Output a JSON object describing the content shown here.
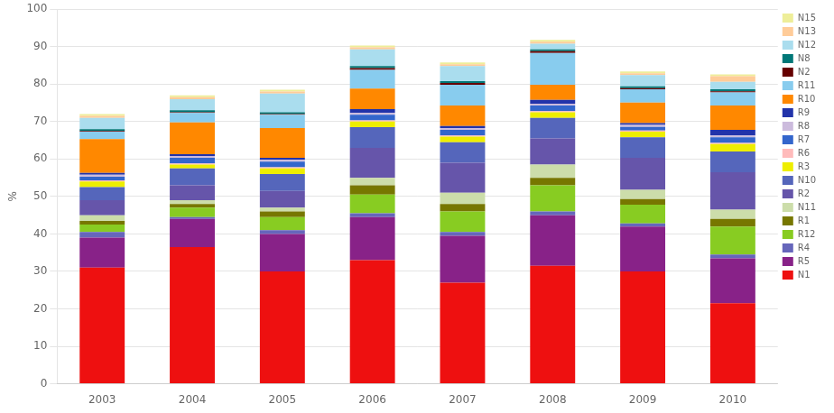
{
  "chart_data": {
    "type": "bar",
    "stacked": true,
    "ylabel": "%",
    "categories": [
      "2003",
      "2004",
      "2005",
      "2006",
      "2007",
      "2008",
      "2009",
      "2010"
    ],
    "series": [
      {
        "name": "N1",
        "color": "#ee1010",
        "values": [
          31.0,
          36.5,
          30.0,
          33.0,
          27.0,
          31.5,
          30.0,
          21.5
        ]
      },
      {
        "name": "R5",
        "color": "#882288",
        "values": [
          8.0,
          7.5,
          10.0,
          11.5,
          12.5,
          13.5,
          12.0,
          12.0
        ]
      },
      {
        "name": "R4",
        "color": "#6666bb",
        "values": [
          1.5,
          0.5,
          1.0,
          1.0,
          1.0,
          1.0,
          0.8,
          1.0
        ]
      },
      {
        "name": "R12",
        "color": "#88cc22",
        "values": [
          2.0,
          2.5,
          3.5,
          5.0,
          5.5,
          7.0,
          5.0,
          7.5
        ]
      },
      {
        "name": "R1",
        "color": "#777700",
        "values": [
          1.0,
          1.0,
          1.5,
          2.5,
          2.0,
          2.0,
          1.5,
          2.0
        ]
      },
      {
        "name": "N11",
        "color": "#ccddaa",
        "values": [
          1.5,
          1.0,
          1.0,
          2.0,
          3.0,
          3.5,
          2.5,
          2.5
        ]
      },
      {
        "name": "R2",
        "color": "#6655aa",
        "values": [
          4.0,
          4.0,
          4.5,
          8.0,
          8.0,
          7.0,
          8.5,
          10.0
        ]
      },
      {
        "name": "N10",
        "color": "#5566bb",
        "values": [
          3.5,
          4.5,
          4.5,
          5.5,
          5.5,
          5.5,
          5.5,
          5.5
        ]
      },
      {
        "name": "R3",
        "color": "#eeee00",
        "values": [
          1.5,
          1.0,
          1.5,
          1.5,
          1.5,
          1.5,
          1.5,
          2.0
        ]
      },
      {
        "name": "R6",
        "color": "#ffbbbb",
        "values": [
          0.3,
          0.3,
          0.3,
          0.3,
          0.3,
          0.3,
          0.3,
          0.3
        ]
      },
      {
        "name": "R7",
        "color": "#3366cc",
        "values": [
          1.0,
          1.5,
          1.5,
          1.5,
          1.5,
          1.5,
          1.0,
          1.5
        ]
      },
      {
        "name": "R8",
        "color": "#ccbbdd",
        "values": [
          0.5,
          0.5,
          0.5,
          0.5,
          0.5,
          0.5,
          0.5,
          0.5
        ]
      },
      {
        "name": "R9",
        "color": "#2233aa",
        "values": [
          0.5,
          0.5,
          0.5,
          1.0,
          0.5,
          1.0,
          0.5,
          1.5
        ]
      },
      {
        "name": "R10",
        "color": "#ff8800",
        "values": [
          9.0,
          8.5,
          8.0,
          5.5,
          5.5,
          4.0,
          5.5,
          6.5
        ]
      },
      {
        "name": "R11",
        "color": "#88ccee",
        "values": [
          2.0,
          2.5,
          3.5,
          5.0,
          5.5,
          8.5,
          3.5,
          3.5
        ]
      },
      {
        "name": "N2",
        "color": "#660000",
        "values": [
          0.2,
          0.2,
          0.2,
          0.5,
          0.5,
          0.5,
          0.3,
          0.3
        ]
      },
      {
        "name": "N8",
        "color": "#007777",
        "values": [
          0.5,
          0.5,
          0.5,
          0.5,
          0.5,
          0.5,
          0.5,
          0.5
        ]
      },
      {
        "name": "N12",
        "color": "#aaddee",
        "values": [
          3.0,
          3.0,
          5.0,
          4.5,
          4.0,
          1.5,
          3.0,
          2.0
        ]
      },
      {
        "name": "N13",
        "color": "#ffcc99",
        "values": [
          0.5,
          0.5,
          0.5,
          0.5,
          0.5,
          0.5,
          0.5,
          1.5
        ]
      },
      {
        "name": "N15",
        "color": "#eeee99",
        "values": [
          0.5,
          0.5,
          0.5,
          0.5,
          0.5,
          0.5,
          0.5,
          0.5
        ]
      }
    ],
    "ylim": [
      0,
      100
    ],
    "yticks": [
      0,
      10,
      20,
      30,
      40,
      50,
      60,
      70,
      80,
      90,
      100
    ],
    "grid": true,
    "legend": "right"
  }
}
